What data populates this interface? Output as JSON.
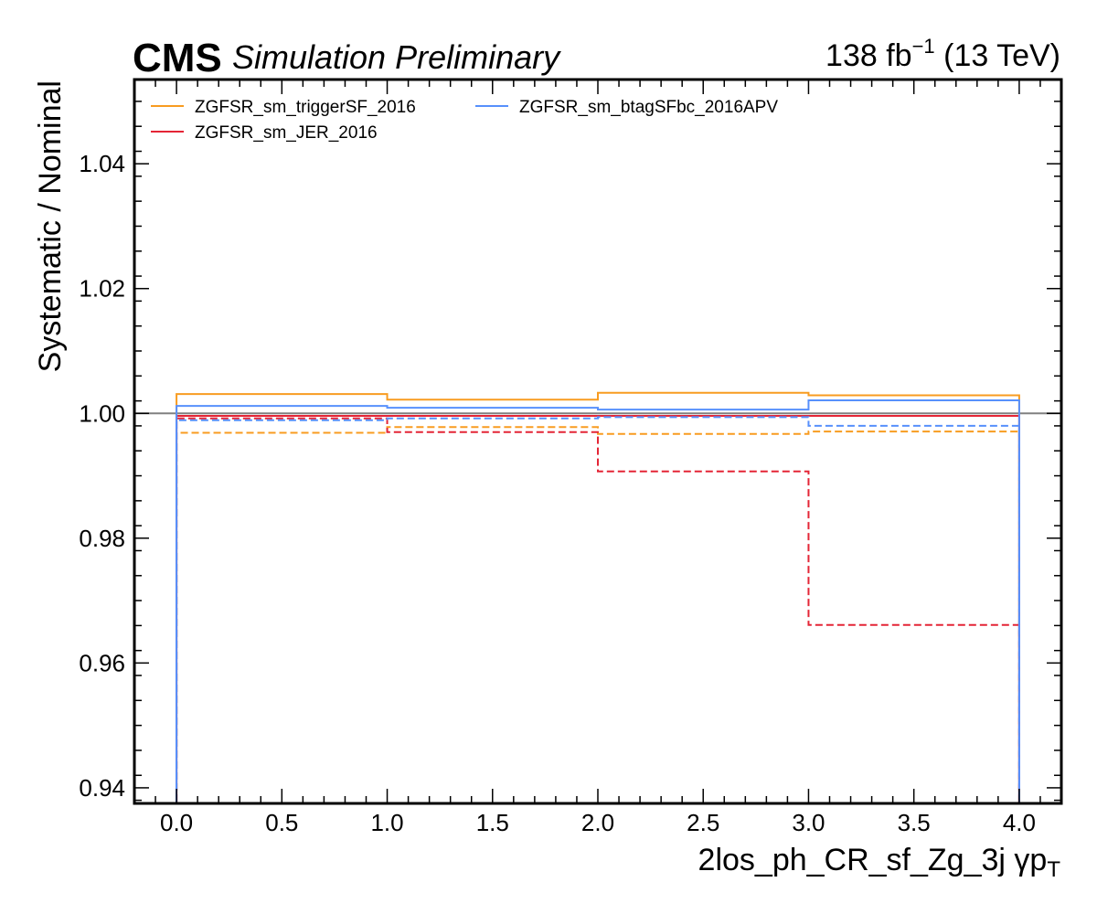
{
  "header": {
    "experiment": "CMS",
    "status": "Simulation Preliminary",
    "lumi_value": "138 fb",
    "lumi_exp": "−1",
    "energy": " (13 TeV)"
  },
  "chart_data": {
    "type": "line",
    "drawstyle": "step",
    "xlabel": "2los_ph_CR_sf_Zg_3j   γp",
    "xlabel_sub": "T",
    "ylabel": "Systematic / Nominal",
    "xlim": [
      -0.2,
      4.2
    ],
    "ylim": [
      0.9375,
      1.0535
    ],
    "bin_edges": [
      0,
      1,
      2,
      3,
      4
    ],
    "reference_line": 1.0,
    "xticks": [
      0.0,
      0.5,
      1.0,
      1.5,
      2.0,
      2.5,
      3.0,
      3.5,
      4.0
    ],
    "xtick_labels": [
      "0.0",
      "0.5",
      "1.0",
      "1.5",
      "2.0",
      "2.5",
      "3.0",
      "3.5",
      "4.0"
    ],
    "yticks": [
      0.94,
      0.96,
      0.98,
      1.0,
      1.02,
      1.04
    ],
    "ytick_labels": [
      "0.94",
      "0.96",
      "0.98",
      "1.00",
      "1.02",
      "1.04"
    ],
    "grid": false,
    "legend_position": "top-left",
    "series": [
      {
        "name": "ZGFSR_sm_triggerSF_2016",
        "color": "#f89c20",
        "variation": "up",
        "linestyle": "solid",
        "values": [
          1.0031,
          1.0022,
          1.0033,
          1.0029
        ]
      },
      {
        "color": "#f89c20",
        "variation": "down",
        "linestyle": "dashed",
        "values": [
          0.9969,
          0.9978,
          0.9967,
          0.9971
        ]
      },
      {
        "name": "ZGFSR_sm_JER_2016",
        "color": "#e42536",
        "variation": "up",
        "linestyle": "solid",
        "values": [
          0.9996,
          0.9996,
          0.9996,
          0.9996
        ]
      },
      {
        "color": "#e42536",
        "variation": "down",
        "linestyle": "dashed",
        "values": [
          0.9992,
          0.997,
          0.9907,
          0.9661
        ]
      },
      {
        "name": "ZGFSR_sm_btagSFbc_2016APV",
        "color": "#5790fc",
        "variation": "up",
        "linestyle": "solid",
        "values": [
          1.0012,
          1.0009,
          1.0006,
          1.0021
        ]
      },
      {
        "color": "#5790fc",
        "variation": "down",
        "linestyle": "dashed",
        "values": [
          0.9989,
          0.9992,
          0.9994,
          0.998
        ]
      }
    ]
  }
}
